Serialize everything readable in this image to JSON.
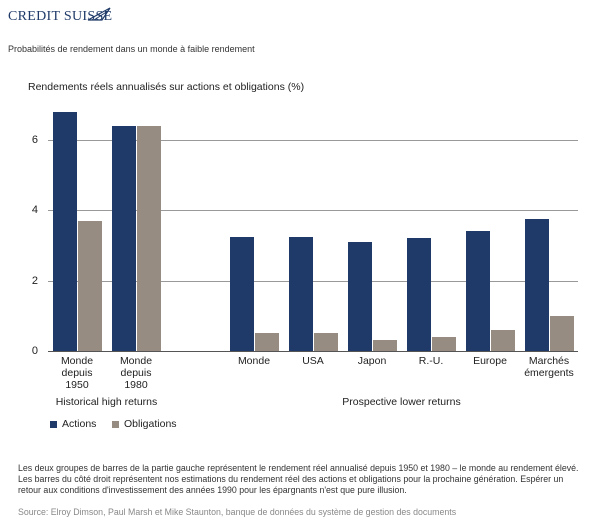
{
  "header": {
    "brand": "CREDIT SUISSE",
    "subtitle": "Probabilités de rendement dans un monde à faible rendement"
  },
  "chart_data": {
    "type": "bar",
    "title": "Rendements réels annualisés sur actions et obligations (%)",
    "categories": [
      "Monde depuis 1950",
      "Monde depuis 1980",
      null,
      "Monde",
      "USA",
      "Japon",
      "R.-U.",
      "Europe",
      "Marchés émergents"
    ],
    "series": [
      {
        "name": "Actions",
        "color": "#1f3a68",
        "values": [
          6.8,
          6.4,
          null,
          3.25,
          3.25,
          3.1,
          3.2,
          3.4,
          3.75
        ]
      },
      {
        "name": "Obligations",
        "color": "#978c82",
        "values": [
          3.7,
          6.4,
          null,
          0.5,
          0.5,
          0.3,
          0.4,
          0.6,
          1.0
        ]
      }
    ],
    "ylim": [
      0,
      7
    ],
    "yticks": [
      0,
      2,
      4,
      6
    ],
    "grid": true,
    "legend": "bottom-left",
    "group_labels": [
      "Historical high returns",
      "Prospective lower returns"
    ]
  },
  "footer": {
    "note": "Les deux groupes de barres de la partie gauche représentent le rendement réel annualisé depuis 1950 et 1980 – le monde au rendement élevé. Les barres du côté droit représentent nos estimations du rendement réel des actions et obligations pour la prochaine génération. Espérer un retour aux conditions d'investissement des années 1990 pour les épargnants n'est que pure illusion.",
    "source": "Source: Elroy Dimson, Paul Marsh et Mike Staunton, banque de données du système de gestion des documents"
  }
}
